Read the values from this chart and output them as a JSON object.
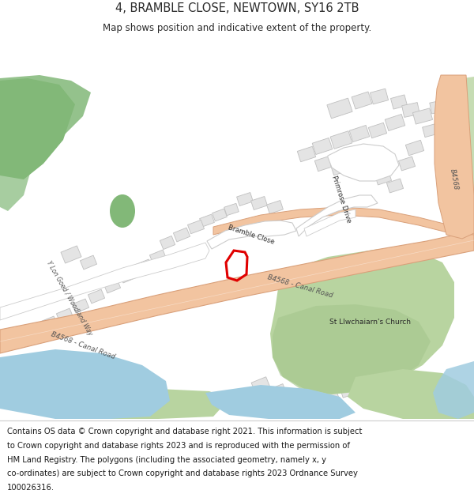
{
  "title": "4, BRAMBLE CLOSE, NEWTOWN, SY16 2TB",
  "subtitle": "Map shows position and indicative extent of the property.",
  "footer_lines": [
    "Contains OS data © Crown copyright and database right 2021. This information is subject",
    "to Crown copyright and database rights 2023 and is reproduced with the permission of",
    "HM Land Registry. The polygons (including the associated geometry, namely x, y",
    "co-ordinates) are subject to Crown copyright and database rights 2023 Ordnance Survey",
    "100026316."
  ],
  "map_bg": "#ffffff",
  "road_color": "#f2c4a0",
  "road_edge": "#d9a07a",
  "green_dark": "#82b878",
  "green_mid": "#a8c890",
  "green_light": "#b8d4a0",
  "water_color": "#a0cce0",
  "building_fill": "#e4e4e4",
  "building_edge": "#c0c0c0",
  "road_line_color": "#c8a080",
  "text_dark": "#2a2a2a",
  "text_road": "#555555",
  "property_red": "#e00000",
  "white": "#ffffff",
  "title_fs": 10.5,
  "subtitle_fs": 8.5,
  "footer_fs": 7.2,
  "label_fs": 6.0,
  "road_label_fs": 6.2
}
